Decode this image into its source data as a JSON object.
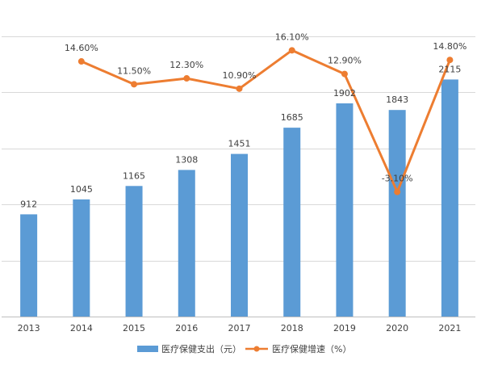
{
  "chart_data": {
    "type": "bar",
    "categories": [
      "2013",
      "2014",
      "2015",
      "2016",
      "2017",
      "2018",
      "2019",
      "2020",
      "2021"
    ],
    "series": [
      {
        "name": "医疗保健支出（元）",
        "type": "bar",
        "values": [
          912,
          1045,
          1165,
          1308,
          1451,
          1685,
          1902,
          1843,
          2115
        ],
        "labels": [
          "912",
          "1045",
          "1165",
          "1308",
          "1451",
          "1685",
          "1902",
          "1843",
          "2115"
        ],
        "color": "#5b9bd5"
      },
      {
        "name": "医疗保健增速（%）",
        "type": "line",
        "values": [
          null,
          14.6,
          11.5,
          12.3,
          10.9,
          16.1,
          12.9,
          -3.1,
          14.8
        ],
        "labels": [
          "",
          "14.60%",
          "11.50%",
          "12.30%",
          "10.90%",
          "16.10%",
          "12.90%",
          "-3.10%",
          "14.80%"
        ],
        "color": "#ed7d31"
      }
    ],
    "ylim": [
      0,
      2500
    ],
    "y2lim": [
      -20,
      18
    ],
    "grid": true,
    "legend": "bottom-center"
  }
}
